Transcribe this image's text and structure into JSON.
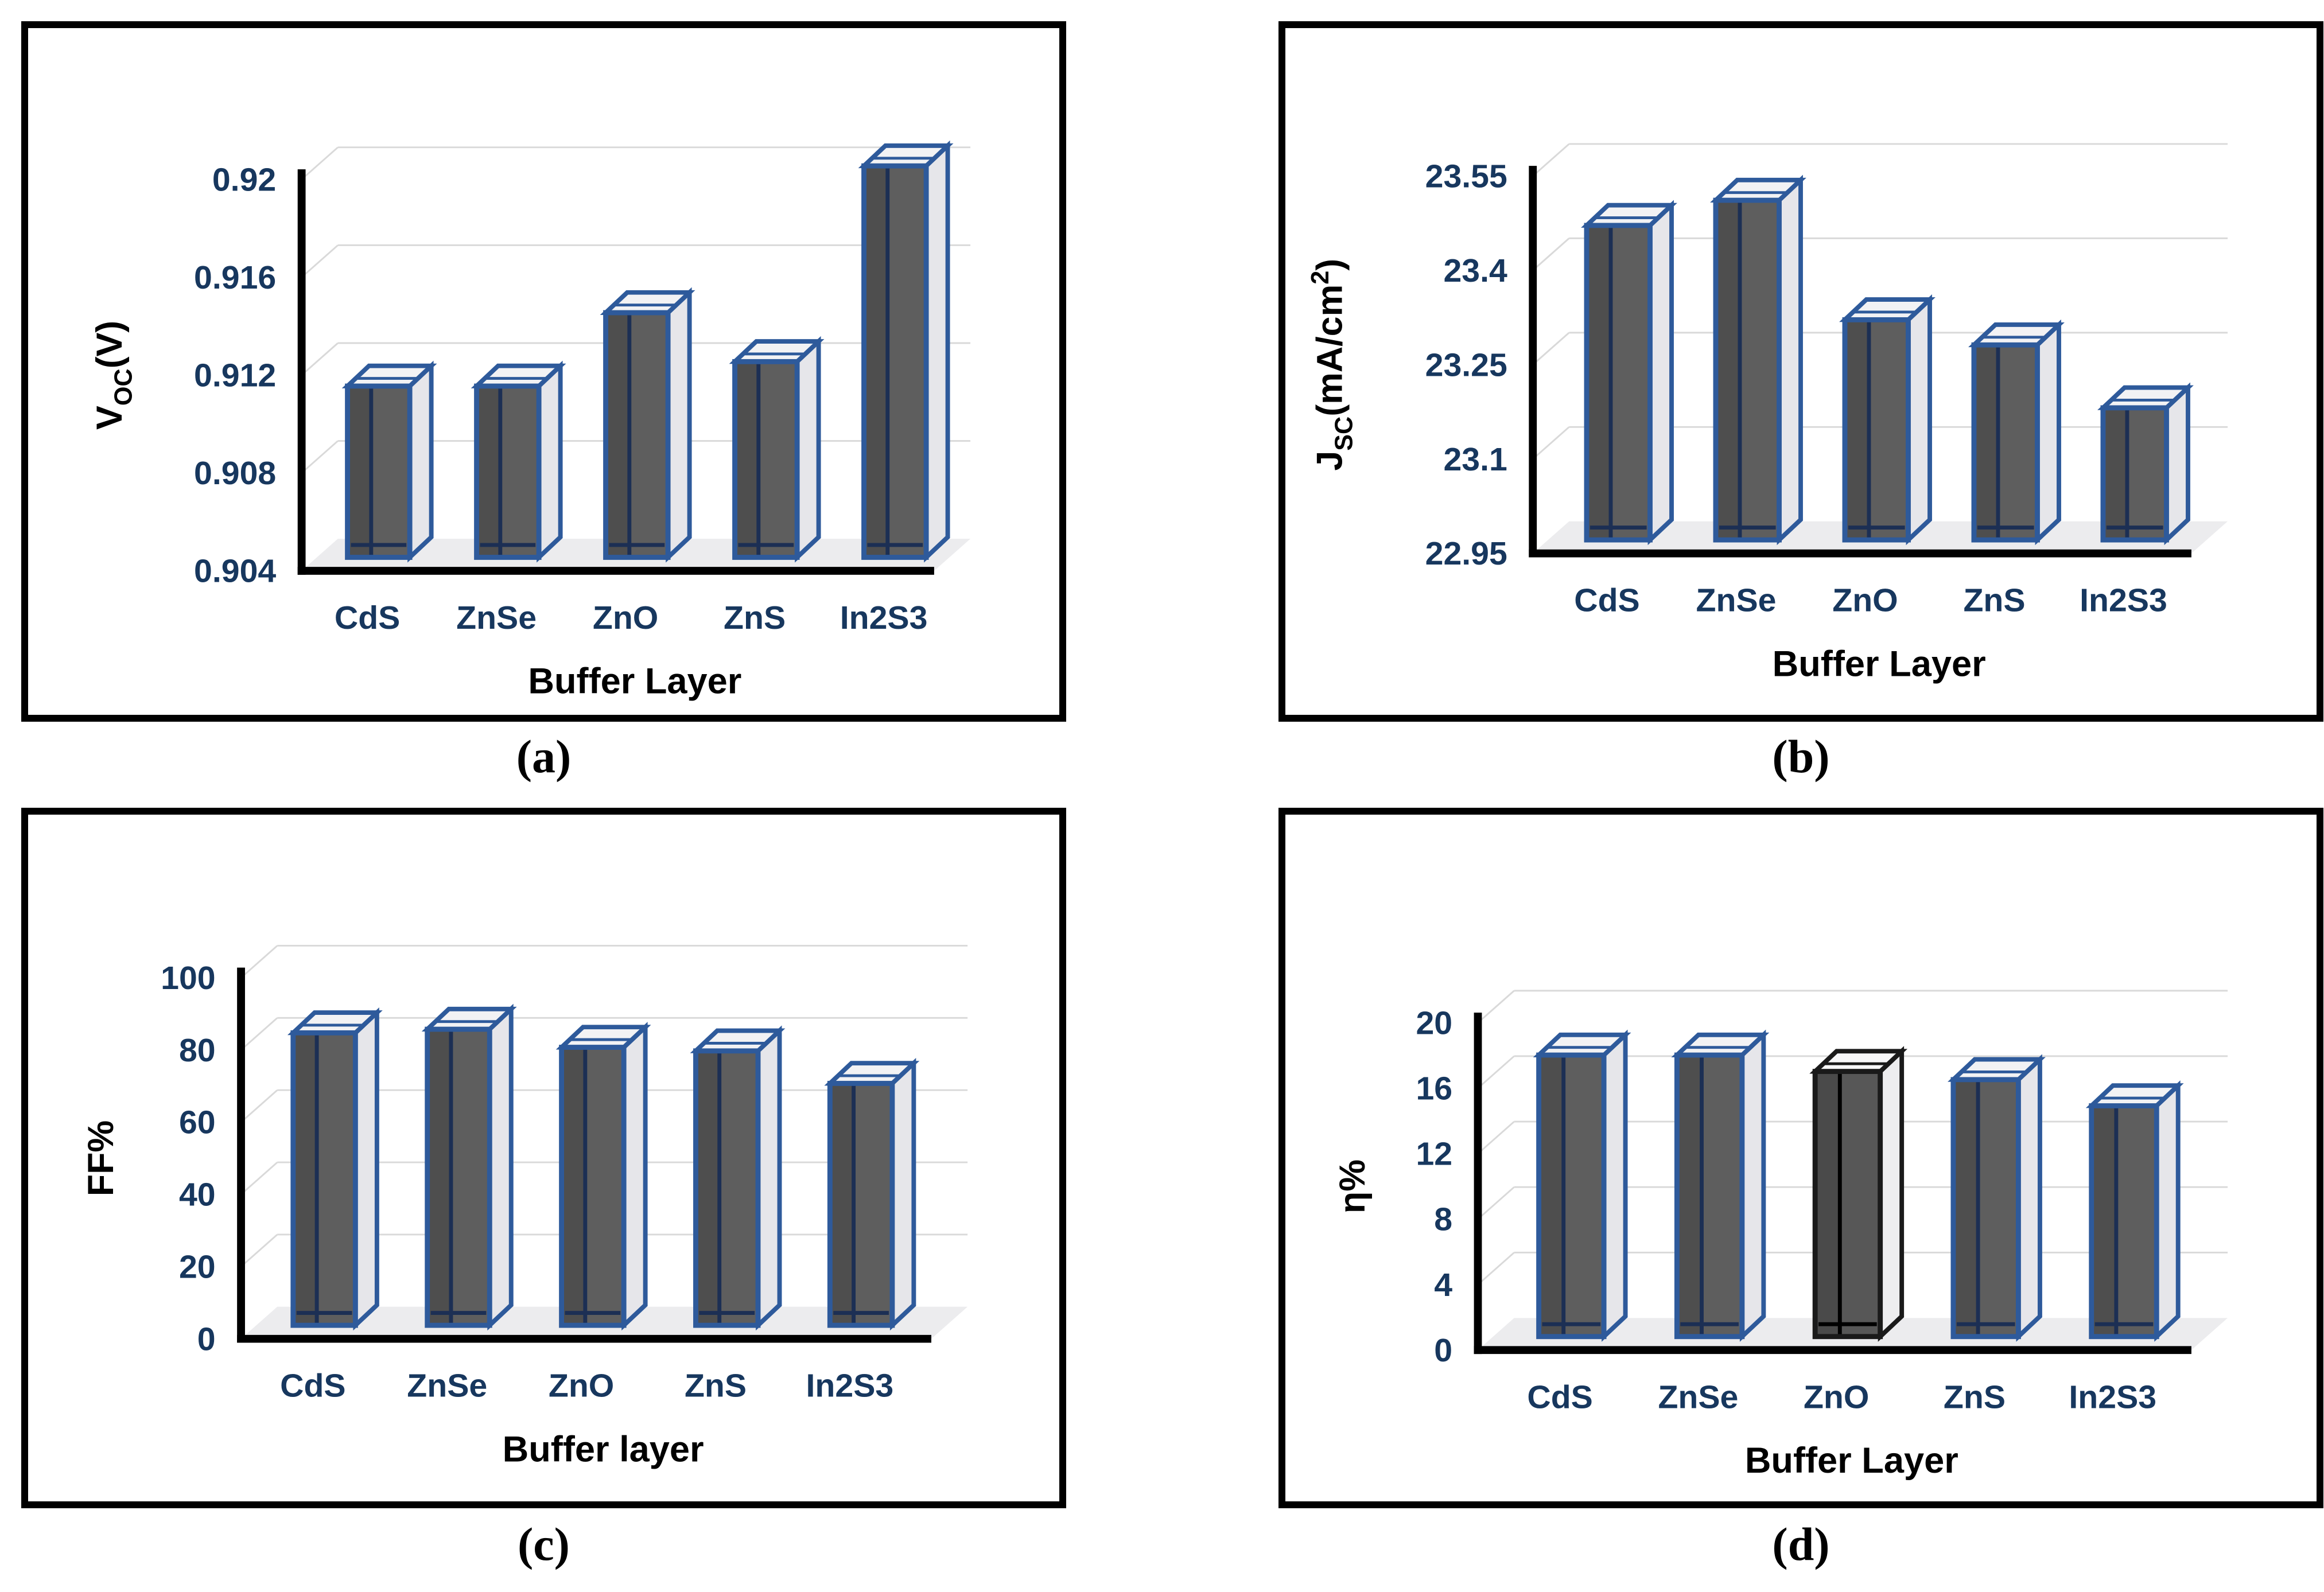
{
  "figure": {
    "background": "#ffffff",
    "captions": [
      {
        "id": "a",
        "label": "(a)"
      },
      {
        "id": "b",
        "label": "(b)"
      },
      {
        "id": "c",
        "label": "(c)"
      },
      {
        "id": "d",
        "label": "(d)"
      }
    ]
  },
  "colors": {
    "panel_border": "#000000",
    "axis": "#000000",
    "tick_text": "#17375e",
    "axis_title": "#000000",
    "gridline": "#d9d9d9",
    "floor": "#ececee",
    "bar_outline_blue": "#2e5a9b",
    "bar_front": "#5e5e5e",
    "bar_front_shade": "#4e4e4e",
    "bar_side": "#e6e6ea",
    "bar_top": "#f2f2f4",
    "bar_inner_edge": "#1c2f54"
  },
  "chart_data": [
    {
      "panel": "a",
      "type": "bar",
      "xlabel": "Buffer Layer",
      "ylabel": "Voc(V)",
      "ylabel_parts": [
        {
          "t": "V"
        },
        {
          "t": "OC",
          "script": "sub"
        },
        {
          "t": "(V)"
        }
      ],
      "categories": [
        "CdS",
        "ZnSe",
        "ZnO",
        "ZnS",
        "In2S3"
      ],
      "values": [
        0.911,
        0.911,
        0.914,
        0.912,
        0.92
      ],
      "ylim": [
        0.904,
        0.92
      ],
      "yticks": [
        0.904,
        0.908,
        0.912,
        0.916,
        0.92
      ],
      "ytick_labels": [
        "0.904",
        "0.908",
        "0.912",
        "0.916",
        "0.92"
      ],
      "grid": true,
      "legend": "none",
      "layout": {
        "x0": 483,
        "ytop": 269,
        "ybase": 965,
        "xend": 1600,
        "centers": [
          619,
          847,
          1075,
          1303,
          1531
        ],
        "barw": 110,
        "ylabel_x": 165
      }
    },
    {
      "panel": "b",
      "type": "bar",
      "xlabel": "Buffer Layer",
      "ylabel": "Jsc(mA/cm2)",
      "ylabel_parts": [
        {
          "t": "J"
        },
        {
          "t": "SC",
          "script": "sub"
        },
        {
          "t": "(mA/cm"
        },
        {
          "t": "2",
          "script": "sup"
        },
        {
          "t": ")"
        }
      ],
      "categories": [
        "CdS",
        "ZnSe",
        "ZnO",
        "ZnS",
        "In2S3"
      ],
      "values": [
        23.45,
        23.49,
        23.3,
        23.26,
        23.16
      ],
      "ylim": [
        22.95,
        23.55
      ],
      "yticks": [
        22.95,
        23.1,
        23.25,
        23.4,
        23.55
      ],
      "ytick_labels": [
        "22.95",
        "23.1",
        "23.25",
        "23.4",
        "23.55"
      ],
      "grid": true,
      "legend": "none",
      "layout": {
        "x0": 437,
        "ytop": 263,
        "ybase": 934,
        "xend": 1600,
        "centers": [
          588,
          816,
          1044,
          1272,
          1500
        ],
        "barw": 112,
        "ylabel_x": 100
      }
    },
    {
      "panel": "c",
      "type": "bar",
      "xlabel": "Buffer layer",
      "ylabel": "FF%",
      "ylabel_parts": [
        {
          "t": "FF%"
        }
      ],
      "categories": [
        "CdS",
        "ZnSe",
        "ZnO",
        "ZnS",
        "In2S3"
      ],
      "values": [
        81,
        82,
        77,
        76,
        67
      ],
      "ylim": [
        0,
        100
      ],
      "yticks": [
        0,
        20,
        40,
        60,
        80,
        100
      ],
      "ytick_labels": [
        "0",
        "20",
        "40",
        "60",
        "80",
        "100"
      ],
      "grid": true,
      "legend": "none",
      "layout": {
        "x0": 376,
        "ytop": 290,
        "ybase": 932,
        "xend": 1595,
        "centers": [
          523,
          760,
          997,
          1234,
          1471
        ],
        "barw": 110,
        "ylabel_x": 150
      }
    },
    {
      "panel": "d",
      "type": "bar",
      "xlabel": "Buffer Layer",
      "ylabel": "η%",
      "ylabel_parts": [
        {
          "t": "η%"
        }
      ],
      "categories": [
        "CdS",
        "ZnSe",
        "ZnO",
        "ZnS",
        "In2S3"
      ],
      "values": [
        17.2,
        17.2,
        16.2,
        15.7,
        14.1
      ],
      "ylim": [
        0,
        20
      ],
      "yticks": [
        0,
        4,
        8,
        12,
        16,
        20
      ],
      "ytick_labels": [
        "0",
        "4",
        "8",
        "12",
        "16",
        "20"
      ],
      "grid": true,
      "legend": "none",
      "highlight": {
        "index": 2,
        "outline": "#1a1a1a",
        "inner": "#000000",
        "front": "#575757",
        "side": "#ededef",
        "top": "#f7f7f8"
      },
      "layout": {
        "x0": 340,
        "ytop": 370,
        "ybase": 952,
        "xend": 1600,
        "centers": [
          505,
          749,
          993,
          1237,
          1481
        ],
        "barw": 115,
        "ylabel_x": 140
      }
    }
  ]
}
